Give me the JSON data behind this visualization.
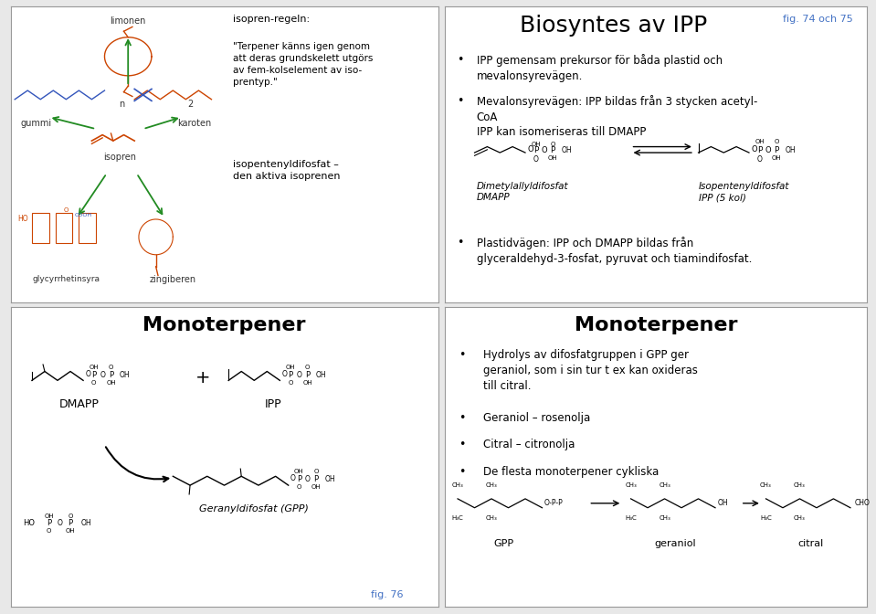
{
  "bg_color": "#e8e8e8",
  "panel_bg": "#ffffff",
  "border_color": "#999999",
  "fig_color": "#4472c4",
  "green_arrow": "#228B22",
  "tl_labels": {
    "isopren_regel": "isopren-regeln:",
    "quote": "\"Terpener känns igen genom\natt deras grundskelett utgörs\nav fem-kolselement av iso-\nprentyp.\"",
    "isopentenyl": "isopentenyldifosfat –\nden aktiva isoprenen",
    "limonen": "limonen",
    "gummi": "gummi",
    "karoten": "karoten",
    "isopren": "isopren",
    "glycyrrhetinsyra": "glycyrrhetinsyra",
    "zingiberen": "zingiberen",
    "n": "n",
    "two": "2"
  },
  "tr_title": "Biosyntes av IPP",
  "tr_fig": "fig. 74 och 75",
  "tr_bullet1": "IPP gemensam prekursor för båda plastid och\nmevalonsyrevägen.",
  "tr_bullet2a": "Mevalonsyrevägen: IPP bildas från 3 stycken acetyl-\nCoA",
  "tr_bullet2b": "IPP kan isomeriseras till DMAPP",
  "tr_label1": "Dimetylallyldifosfat\nDMAPP",
  "tr_label2": "Isopentenyldifosfat\nIPP (5 kol)",
  "tr_bullet3": "Plastidvägen: IPP och DMAPP bildas från\nglyceraldehyd-3-fosfat, pyruvat och tiamindifosfat.",
  "bl_title": "Monoterpener",
  "bl_dmapp": "DMAPP",
  "bl_ipp": "IPP",
  "bl_geranyl": "Geranyldifosfat (GPP)",
  "bl_fig": "fig. 76",
  "br_title": "Monoterpener",
  "br_bullet1": "Hydrolys av difosfatgruppen i GPP ger\ngeraniol, som i sin tur t ex kan oxideras\ntill citral.",
  "br_bullet2": "Geraniol – rosenolja",
  "br_bullet3": "Citral – citronolja",
  "br_bullet4": "De flesta monoterpener cykliska",
  "br_gpp": "GPP",
  "br_geraniol": "geraniol",
  "br_citral": "citral"
}
